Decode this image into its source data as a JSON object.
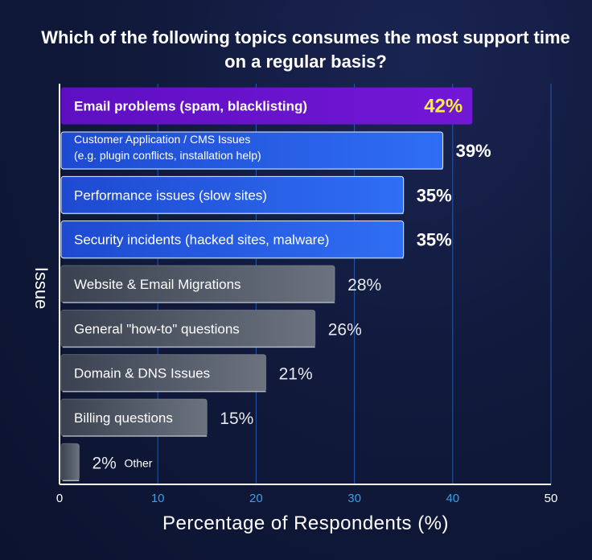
{
  "chart_data": {
    "type": "bar",
    "orientation": "horizontal",
    "title": "Which of the following topics consumes the most support time on a regular basis?",
    "title_lines": [
      "Which of the following topics consumes the most support time",
      "on a regular basis?"
    ],
    "xlabel": "Percentage of Respondents (%)",
    "ylabel": "Issue",
    "xlim": [
      0,
      50
    ],
    "xticks": [
      0,
      10,
      20,
      30,
      40,
      50
    ],
    "grid": "vertical",
    "categories": [
      [
        "Email problems (spam, blacklisting)"
      ],
      [
        "Customer Application / CMS Issues",
        "(e.g. plugin conflicts, installation help)"
      ],
      [
        "Performance issues (slow sites)"
      ],
      [
        "Security incidents (hacked sites, malware)"
      ],
      [
        "Website & Email Migrations"
      ],
      [
        "General \"how-to\" questions"
      ],
      [
        "Domain & DNS Issues"
      ],
      [
        "Billing questions"
      ],
      [
        "Other"
      ]
    ],
    "values": [
      42,
      39,
      35,
      35,
      28,
      26,
      21,
      15,
      2
    ],
    "value_labels": [
      "42%",
      "39%",
      "35%",
      "35%",
      "28%",
      "26%",
      "21%",
      "15%",
      "2%"
    ],
    "styles": [
      "highlight",
      "blue",
      "blue",
      "blue",
      "gray",
      "gray",
      "gray",
      "gray",
      "gray"
    ],
    "colors": {
      "highlight": "#6a12c8",
      "blue_start": "#1e4fd6",
      "blue_end": "#2f6bf2",
      "gray_start": "#3f4655",
      "gray_end": "#6a717d",
      "highlight_label": "#f4f03c",
      "tick_colored": "#3a9ee8",
      "axis": "#ffffff",
      "grid": "#2a66c8"
    }
  }
}
